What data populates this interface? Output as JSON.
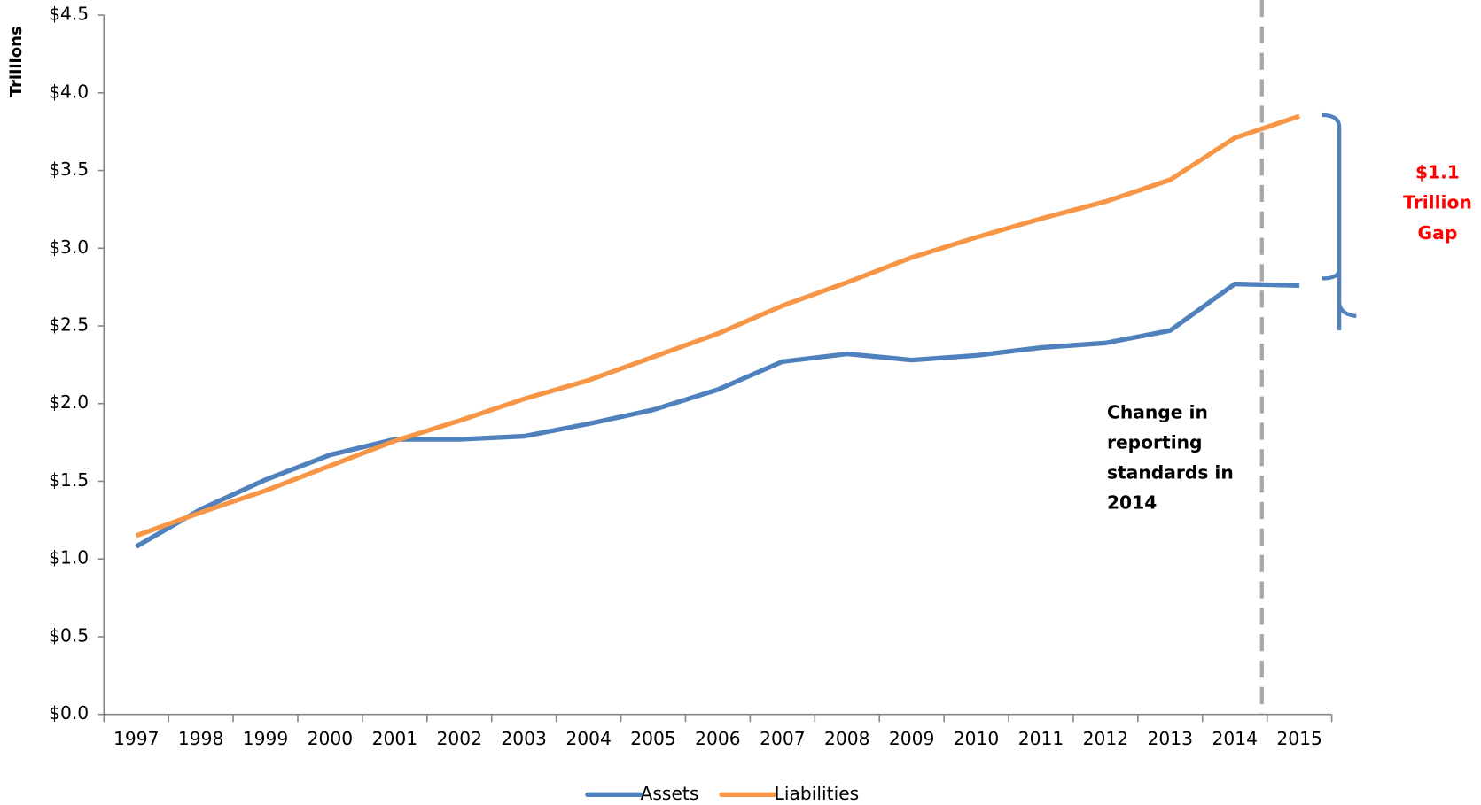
{
  "chart_data": {
    "type": "line",
    "y_label": "Trillions",
    "categories": [
      "1997",
      "1998",
      "1999",
      "2000",
      "2001",
      "2002",
      "2003",
      "2004",
      "2005",
      "2006",
      "2007",
      "2008",
      "2009",
      "2010",
      "2011",
      "2012",
      "2013",
      "2014",
      "2015"
    ],
    "series": [
      {
        "name": "Assets",
        "color": "#4f81bd",
        "values": [
          1.08,
          1.32,
          1.51,
          1.67,
          1.77,
          1.77,
          1.79,
          1.87,
          1.96,
          2.09,
          2.27,
          2.32,
          2.28,
          2.31,
          2.36,
          2.39,
          2.47,
          2.77,
          2.76
        ]
      },
      {
        "name": "Liabilities",
        "color": "#f79646",
        "values": [
          1.15,
          1.3,
          1.44,
          1.6,
          1.76,
          1.89,
          2.03,
          2.15,
          2.3,
          2.45,
          2.63,
          2.78,
          2.94,
          3.07,
          3.19,
          3.3,
          3.44,
          3.71,
          3.85
        ]
      }
    ],
    "ylim": [
      0,
      4.5
    ],
    "yticks": [
      {
        "value": 0,
        "label": "$0.0"
      },
      {
        "value": 0.5,
        "label": "$0.5"
      },
      {
        "value": 1,
        "label": "$1.0"
      },
      {
        "value": 1.5,
        "label": "$1.5"
      },
      {
        "value": 2,
        "label": "$2.0"
      },
      {
        "value": 2.5,
        "label": "$2.5"
      },
      {
        "value": 3,
        "label": "$3.0"
      },
      {
        "value": 3.5,
        "label": "$3.5"
      },
      {
        "value": 4,
        "label": "$4.0"
      },
      {
        "value": 4.5,
        "label": "$4.5"
      }
    ],
    "annotation_lines": [
      "Change in",
      "reporting",
      "standards in",
      "2014"
    ],
    "gap_label_lines": [
      "$1.1",
      "Trillion",
      "Gap"
    ],
    "legend": "bottom"
  }
}
